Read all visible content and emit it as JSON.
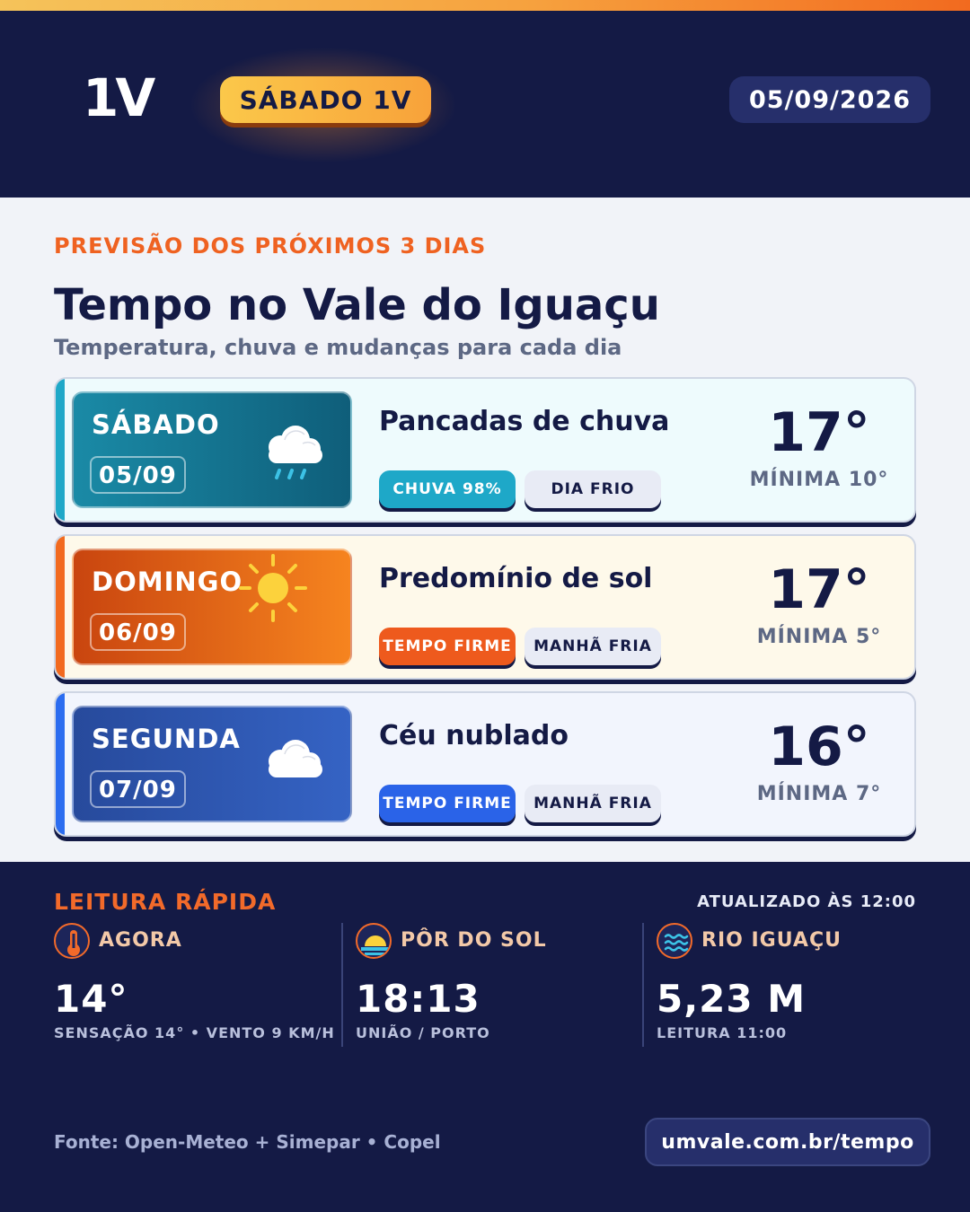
{
  "header": {
    "logo": "1V",
    "day_badge": "SÁBADO 1V",
    "date": "05/09/2026"
  },
  "main": {
    "eyebrow": "PREVISÃO DOS PRÓXIMOS 3 DIAS",
    "title": "Tempo no Vale do Iguaçu",
    "subtitle": "Temperatura, chuva e mudanças para cada dia"
  },
  "forecast": [
    {
      "day": "SÁBADO",
      "date": "05/09",
      "icon": "rain-cloud-icon",
      "description": "Pancadas de chuva",
      "tags": [
        "CHUVA 98%",
        "DIA FRIO"
      ],
      "temp": "17°",
      "min": "MÍNIMA 10°",
      "colors": {
        "stripe": "#1ea8c8",
        "box_from": "#1a8aa6",
        "box_to": "#0f5e7a",
        "card_bg": "#eefbfd",
        "tag": "#1ea8c8"
      }
    },
    {
      "day": "DOMINGO",
      "date": "06/09",
      "icon": "sun-icon",
      "description": "Predomínio de sol",
      "tags": [
        "TEMPO FIRME",
        "MANHÃ FRIA"
      ],
      "temp": "17°",
      "min": "MÍNIMA 5°",
      "colors": {
        "stripe": "#f26a1f",
        "box_from": "#c9450f",
        "box_to": "#f6841f",
        "card_bg": "#fef9ea",
        "tag": "#ee5a1d"
      }
    },
    {
      "day": "SEGUNDA",
      "date": "07/09",
      "icon": "cloud-icon",
      "description": "Céu nublado",
      "tags": [
        "TEMPO FIRME",
        "MANHÃ FRIA"
      ],
      "temp": "16°",
      "min": "MÍNIMA 7°",
      "colors": {
        "stripe": "#2b6cf0",
        "box_from": "#274a9c",
        "box_to": "#3563c4",
        "card_bg": "#f2f5fd",
        "tag": "#2a63e8"
      }
    }
  ],
  "quick": {
    "title": "LEITURA RÁPIDA",
    "updated": "ATUALIZADO ÀS 12:00",
    "items": [
      {
        "icon": "thermometer-icon",
        "label": "AGORA",
        "value": "14°",
        "sub": "SENSAÇÃO 14° • VENTO 9 KM/H"
      },
      {
        "icon": "sunset-icon",
        "label": "PÔR DO SOL",
        "value": "18:13",
        "sub": "UNIÃO / PORTO"
      },
      {
        "icon": "river-waves-icon",
        "label": "RIO IGUAÇU",
        "value": "5,23 M",
        "sub": "LEITURA 11:00"
      }
    ]
  },
  "footer": {
    "source": "Fonte: Open-Meteo + Simepar • Copel",
    "url": "umvale.com.br/tempo"
  }
}
